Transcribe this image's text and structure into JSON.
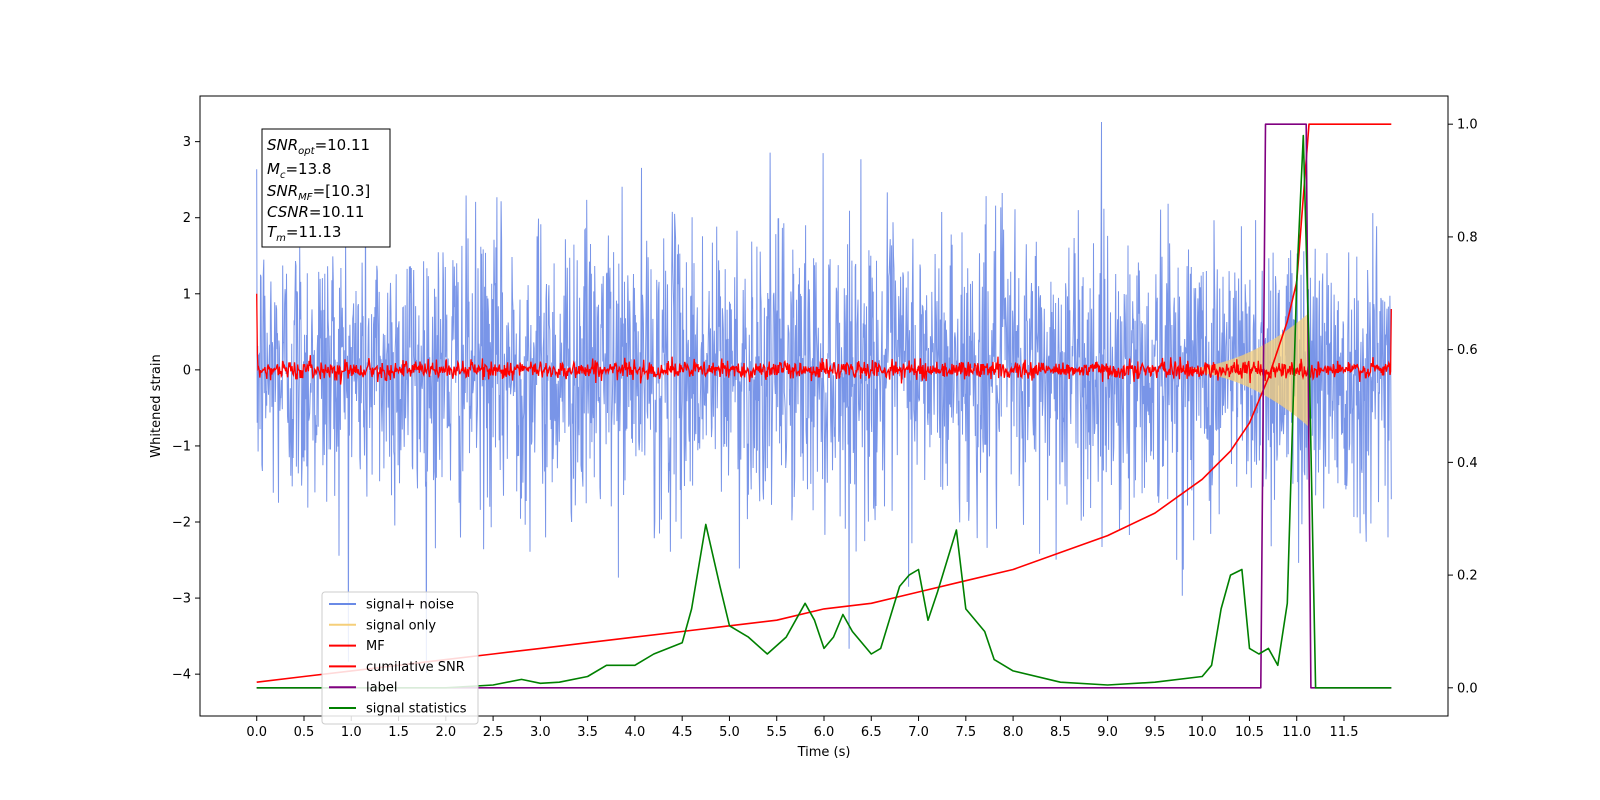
{
  "chart_data": {
    "type": "line",
    "xlabel": "Time (s)",
    "ylabel_left": "Whitened strain",
    "ylabel_right": "",
    "x_ticks": [
      0.0,
      0.5,
      1.0,
      1.5,
      2.0,
      2.5,
      3.0,
      3.5,
      4.0,
      4.5,
      5.0,
      5.5,
      6.0,
      6.5,
      7.0,
      7.5,
      8.0,
      8.5,
      9.0,
      9.5,
      10.0,
      10.5,
      11.0,
      11.5
    ],
    "x_tick_labels": [
      "0.0",
      "0.5",
      "1.0",
      "1.5",
      "2.0",
      "2.5",
      "3.0",
      "3.5",
      "4.0",
      "4.5",
      "5.0",
      "5.5",
      "6.0",
      "6.5",
      "7.0",
      "7.5",
      "8.0",
      "8.5",
      "9.0",
      "9.5",
      "10.0",
      "10.5",
      "11.0",
      "11.5"
    ],
    "xlim": [
      -0.6,
      12.6
    ],
    "ylim_left": [
      -4.55,
      3.6
    ],
    "y_ticks_left": [
      -4,
      -3,
      -2,
      -1,
      0,
      1,
      2,
      3
    ],
    "y_tick_labels_left": [
      "−4",
      "−3",
      "−2",
      "−1",
      "0",
      "1",
      "2",
      "3"
    ],
    "ylim_right": [
      -0.05,
      1.05
    ],
    "y_ticks_right": [
      0.0,
      0.2,
      0.4,
      0.6,
      0.8,
      1.0
    ],
    "y_tick_labels_right": [
      "0.0",
      "0.2",
      "0.4",
      "0.6",
      "0.8",
      "1.0"
    ],
    "grid": false,
    "legend_position": "lower-left",
    "legend": [
      {
        "label": "signal+ noise",
        "color": "#6a8ae6"
      },
      {
        "label": "signal only",
        "color": "#f5cf7a"
      },
      {
        "label": "MF",
        "color": "#ff0000"
      },
      {
        "label": "cumilative SNR",
        "color": "#ff0000"
      },
      {
        "label": "label",
        "color": "#800080"
      },
      {
        "label": "signal statistics",
        "color": "#008000"
      }
    ],
    "annotation": {
      "snr_opt": {
        "name": "SNR",
        "sub": "opt",
        "value": "=10.11"
      },
      "mc": {
        "name": "M",
        "sub": "c",
        "value": "=13.8"
      },
      "snr_mf": {
        "name": "SNR",
        "sub": "MF",
        "value": "=[10.3]"
      },
      "csnr": {
        "name": "CSNR",
        "value": "=10.11"
      },
      "tm": {
        "name": "T",
        "sub": "m",
        "value": "=11.13"
      }
    },
    "series": [
      {
        "name": "signal+ noise",
        "axis": "left",
        "t_start": 0.0,
        "t_end": 12.0,
        "noise_amplitude": 0.95,
        "typical_range": [
          -2.5,
          2.6
        ],
        "extreme_range": [
          -4.15,
          3.28
        ]
      },
      {
        "name": "signal only",
        "axis": "left",
        "t_start": 0.0,
        "t_end": 11.13,
        "note_amplitude_peak": 0.75
      },
      {
        "name": "MF",
        "axis": "left",
        "t_start": 0.0,
        "t_end": 12.0,
        "typical_range": [
          -0.15,
          0.2
        ],
        "start_value": 1.0,
        "end_value": 0.8
      },
      {
        "name": "cumilative SNR",
        "axis": "right",
        "x": [
          0.0,
          0.5,
          1.0,
          1.5,
          2.0,
          2.5,
          3.0,
          3.5,
          4.0,
          4.5,
          5.0,
          5.5,
          6.0,
          6.5,
          7.0,
          7.5,
          8.0,
          8.5,
          9.0,
          9.5,
          10.0,
          10.3,
          10.5,
          10.7,
          10.9,
          11.0,
          11.13,
          11.2,
          12.0
        ],
        "values": [
          0.01,
          0.02,
          0.03,
          0.04,
          0.05,
          0.06,
          0.07,
          0.08,
          0.09,
          0.1,
          0.11,
          0.12,
          0.14,
          0.15,
          0.17,
          0.19,
          0.21,
          0.24,
          0.27,
          0.31,
          0.37,
          0.42,
          0.47,
          0.55,
          0.65,
          0.72,
          1.0,
          1.0,
          1.0
        ]
      },
      {
        "name": "label",
        "axis": "right",
        "x": [
          0.0,
          10.62,
          10.67,
          11.1,
          11.15,
          12.0
        ],
        "values": [
          0.0,
          0.0,
          1.0,
          1.0,
          0.0,
          0.0
        ]
      },
      {
        "name": "signal statistics",
        "axis": "right",
        "x": [
          0.0,
          1.0,
          2.0,
          2.5,
          2.8,
          3.0,
          3.2,
          3.5,
          3.7,
          4.0,
          4.2,
          4.5,
          4.6,
          4.75,
          4.9,
          5.0,
          5.2,
          5.4,
          5.6,
          5.8,
          5.9,
          6.0,
          6.1,
          6.2,
          6.3,
          6.5,
          6.6,
          6.8,
          6.9,
          7.0,
          7.1,
          7.2,
          7.4,
          7.5,
          7.7,
          7.8,
          8.0,
          8.5,
          9.0,
          9.5,
          10.0,
          10.1,
          10.2,
          10.3,
          10.42,
          10.5,
          10.6,
          10.7,
          10.8,
          10.9,
          11.0,
          11.07,
          11.13,
          11.2,
          12.0
        ],
        "values": [
          0.0,
          0.0,
          0.0,
          0.005,
          0.015,
          0.008,
          0.01,
          0.02,
          0.04,
          0.04,
          0.06,
          0.08,
          0.14,
          0.29,
          0.18,
          0.11,
          0.09,
          0.06,
          0.09,
          0.15,
          0.12,
          0.07,
          0.09,
          0.13,
          0.1,
          0.06,
          0.07,
          0.18,
          0.2,
          0.21,
          0.12,
          0.17,
          0.28,
          0.14,
          0.1,
          0.05,
          0.03,
          0.01,
          0.005,
          0.01,
          0.02,
          0.04,
          0.14,
          0.2,
          0.21,
          0.07,
          0.06,
          0.07,
          0.04,
          0.15,
          0.72,
          0.98,
          0.6,
          0.0,
          0.0
        ]
      }
    ]
  }
}
